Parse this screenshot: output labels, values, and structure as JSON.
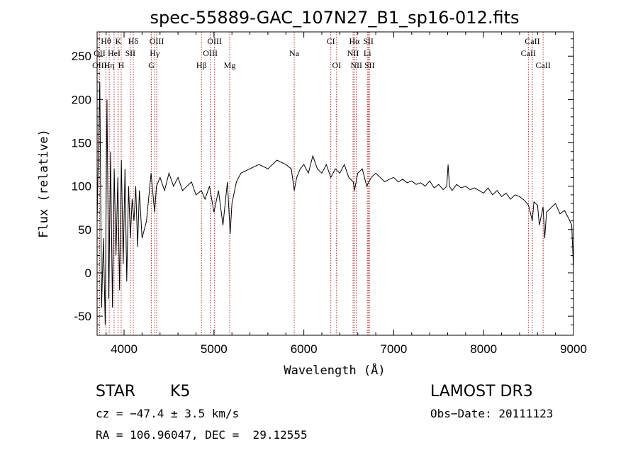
{
  "chart_data": {
    "type": "line",
    "title": "spec-55889-GAC_107N27_B1_sp16-012.fits",
    "xlabel": "Wavelength (Å)",
    "ylabel": "Flux (relative)",
    "xlim": [
      3700,
      9000
    ],
    "ylim": [
      -72,
      278
    ],
    "xticks": [
      4000,
      5000,
      6000,
      7000,
      8000,
      9000
    ],
    "yticks": [
      -50,
      0,
      50,
      100,
      150,
      200,
      250
    ],
    "series": [
      {
        "name": "flux",
        "x": [
          3700,
          3730,
          3750,
          3770,
          3790,
          3810,
          3830,
          3850,
          3870,
          3890,
          3910,
          3930,
          3950,
          3970,
          3990,
          4010,
          4030,
          4050,
          4070,
          4090,
          4110,
          4130,
          4150,
          4170,
          4200,
          4250,
          4300,
          4340,
          4360,
          4400,
          4450,
          4500,
          4550,
          4600,
          4650,
          4700,
          4750,
          4800,
          4860,
          4900,
          4950,
          5000,
          5050,
          5100,
          5150,
          5180,
          5200,
          5250,
          5300,
          5400,
          5500,
          5600,
          5700,
          5800,
          5860,
          5893,
          5920,
          5960,
          6000,
          6050,
          6100,
          6150,
          6200,
          6250,
          6300,
          6350,
          6400,
          6450,
          6500,
          6550,
          6563,
          6600,
          6650,
          6700,
          6750,
          6800,
          6850,
          6900,
          6950,
          7000,
          7050,
          7100,
          7150,
          7200,
          7250,
          7300,
          7350,
          7400,
          7450,
          7500,
          7550,
          7590,
          7605,
          7620,
          7650,
          7700,
          7750,
          7800,
          7850,
          7900,
          7950,
          8000,
          8050,
          8100,
          8150,
          8200,
          8250,
          8300,
          8350,
          8400,
          8450,
          8500,
          8542,
          8560,
          8600,
          8620,
          8662,
          8680,
          8700,
          8750,
          8800,
          8850,
          8900,
          8950,
          8980,
          9000
        ],
        "values": [
          60,
          220,
          -40,
          40,
          -60,
          200,
          -30,
          140,
          -40,
          120,
          20,
          110,
          -20,
          130,
          10,
          120,
          -10,
          100,
          40,
          85,
          60,
          100,
          30,
          95,
          40,
          60,
          115,
          70,
          100,
          110,
          95,
          115,
          100,
          110,
          95,
          100,
          105,
          90,
          95,
          85,
          100,
          70,
          95,
          55,
          105,
          45,
          80,
          105,
          115,
          120,
          125,
          120,
          130,
          125,
          120,
          95,
          110,
          120,
          125,
          115,
          135,
          120,
          115,
          125,
          110,
          120,
          115,
          125,
          110,
          105,
          95,
          115,
          120,
          100,
          110,
          115,
          110,
          105,
          108,
          110,
          105,
          108,
          104,
          106,
          102,
          104,
          100,
          106,
          98,
          102,
          96,
          100,
          125,
          100,
          95,
          102,
          98,
          100,
          96,
          98,
          95,
          92,
          98,
          90,
          95,
          88,
          92,
          85,
          90,
          88,
          84,
          78,
          60,
          82,
          78,
          55,
          76,
          40,
          70,
          75,
          80,
          68,
          72,
          62,
          55,
          5
        ]
      }
    ],
    "line_markers": [
      {
        "label": "Hθ",
        "wavelength": 3798,
        "row": 0
      },
      {
        "label": "K",
        "wavelength": 3934,
        "row": 0
      },
      {
        "label": "Hδ",
        "wavelength": 4102,
        "row": 0
      },
      {
        "label": "OIII",
        "wavelength": 4363,
        "row": 0
      },
      {
        "label": "OIII",
        "wavelength": 5007,
        "row": 0
      },
      {
        "label": "CI",
        "wavelength": 6300,
        "row": 0
      },
      {
        "label": "Hα",
        "wavelength": 6563,
        "row": 0
      },
      {
        "label": "SII",
        "wavelength": 6717,
        "row": 0
      },
      {
        "label": "CaII",
        "wavelength": 8542,
        "row": 0
      },
      {
        "label": "OII",
        "wavelength": 3727,
        "row": 1
      },
      {
        "label": "HeI",
        "wavelength": 3889,
        "row": 1
      },
      {
        "label": "SII",
        "wavelength": 4069,
        "row": 1
      },
      {
        "label": "Hγ",
        "wavelength": 4341,
        "row": 1
      },
      {
        "label": "OIII",
        "wavelength": 4959,
        "row": 1
      },
      {
        "label": "Na",
        "wavelength": 5893,
        "row": 1
      },
      {
        "label": "NII",
        "wavelength": 6548,
        "row": 1
      },
      {
        "label": "Li",
        "wavelength": 6707,
        "row": 1
      },
      {
        "label": "CaII",
        "wavelength": 8498,
        "row": 1
      },
      {
        "label": "OIII",
        "wavelength": 3727,
        "row": 2
      },
      {
        "label": "Hη",
        "wavelength": 3835,
        "row": 2
      },
      {
        "label": "H",
        "wavelength": 3968,
        "row": 2
      },
      {
        "label": "G",
        "wavelength": 4304,
        "row": 2
      },
      {
        "label": "Hβ",
        "wavelength": 4861,
        "row": 2
      },
      {
        "label": "Mg",
        "wavelength": 5175,
        "row": 2
      },
      {
        "label": "OI",
        "wavelength": 6364,
        "row": 2
      },
      {
        "label": "NII",
        "wavelength": 6584,
        "row": 2
      },
      {
        "label": "SII",
        "wavelength": 6731,
        "row": 2
      },
      {
        "label": "CaII",
        "wavelength": 8662,
        "row": 2
      }
    ],
    "marker_color": "#b22222",
    "line_color": "#000000"
  },
  "info": {
    "object_class": "STAR",
    "subclass": "K5",
    "survey": "LAMOST DR3",
    "cz": "cz = −47.4 ± 3.5 km/s",
    "obs_date": "Obs−Date: 20111123",
    "coords": "RA = 106.96047, DEC =  29.12555"
  }
}
